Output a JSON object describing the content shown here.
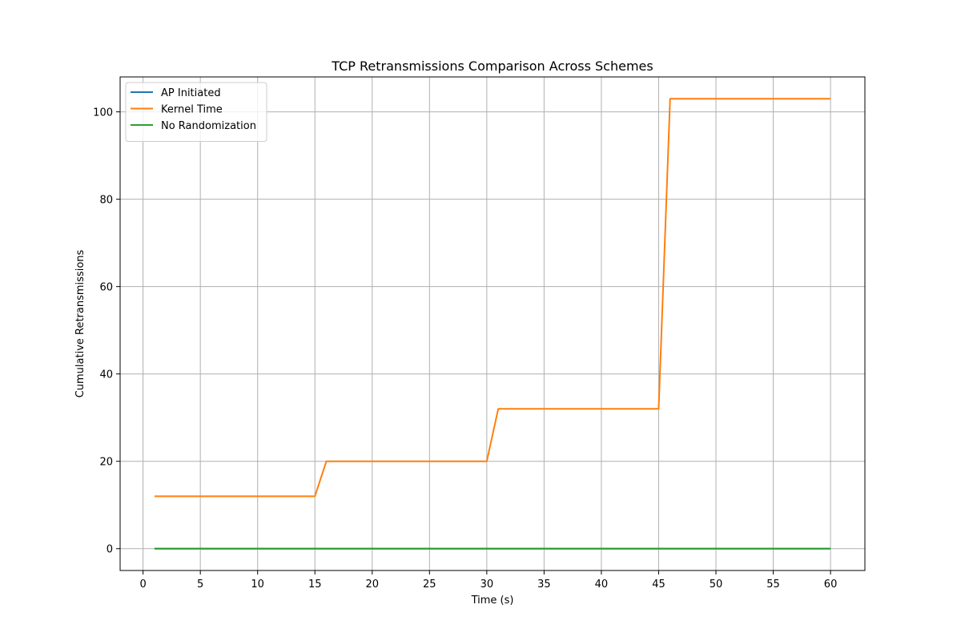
{
  "chart_data": {
    "type": "line",
    "title": "TCP Retransmissions Comparison Across Schemes",
    "xlabel": "Time (s)",
    "ylabel": "Cumulative Retransmissions",
    "xlim": [
      -2,
      63
    ],
    "ylim": [
      -5,
      108
    ],
    "xticks": [
      0,
      5,
      10,
      15,
      20,
      25,
      30,
      35,
      40,
      45,
      50,
      55,
      60
    ],
    "yticks": [
      0,
      20,
      40,
      60,
      80,
      100
    ],
    "grid": true,
    "legend_position": "top-left",
    "series": [
      {
        "name": "AP Initiated",
        "color": "#1f77b4",
        "x": [
          1,
          60
        ],
        "y": [
          0,
          0
        ]
      },
      {
        "name": "Kernel Time",
        "color": "#ff7f0e",
        "x": [
          1,
          15,
          16,
          30,
          31,
          45,
          46,
          60
        ],
        "y": [
          12,
          12,
          20,
          20,
          32,
          32,
          103,
          103
        ]
      },
      {
        "name": "No Randomization",
        "color": "#2ca02c",
        "x": [
          1,
          60
        ],
        "y": [
          0,
          0
        ]
      }
    ]
  }
}
